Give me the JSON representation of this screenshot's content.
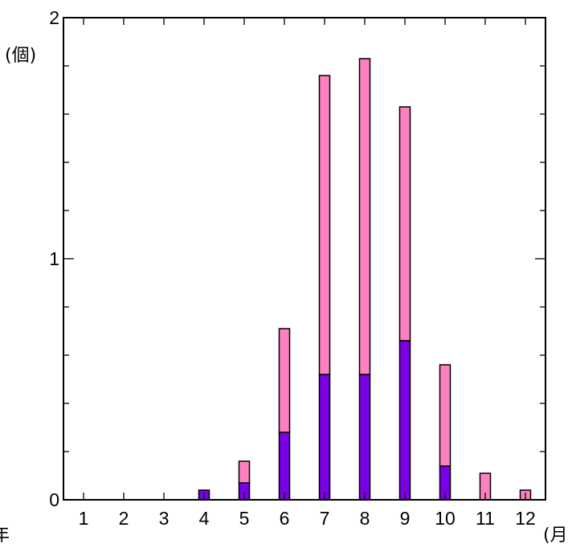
{
  "chart_data": {
    "type": "bar",
    "stacked": true,
    "categories": [
      "1",
      "2",
      "3",
      "4",
      "5",
      "6",
      "7",
      "8",
      "9",
      "10",
      "11",
      "12"
    ],
    "series": [
      {
        "color": "#7a00e6",
        "values": [
          0,
          0,
          0,
          0.04,
          0.07,
          0.28,
          0.52,
          0.52,
          0.66,
          0.14,
          0,
          0
        ]
      },
      {
        "color": "#ff80c0",
        "values": [
          0,
          0,
          0,
          0,
          0.09,
          0.43,
          1.24,
          1.31,
          0.97,
          0.42,
          0.11,
          0.04
        ]
      }
    ],
    "ylim": [
      0,
      2
    ],
    "yticks": [
      "0",
      "1",
      "2"
    ],
    "ylabel": "(個)",
    "xlabel": "(月",
    "corner_text": "年",
    "grid": false,
    "legend": "none"
  }
}
